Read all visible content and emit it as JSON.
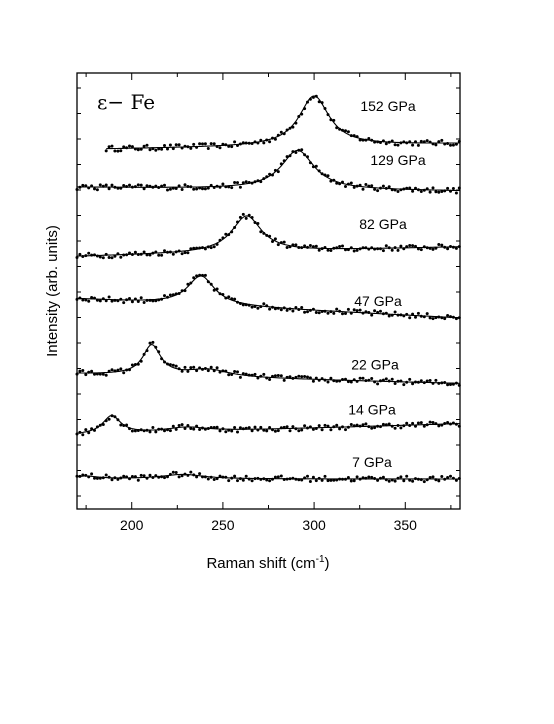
{
  "chart_data": {
    "type": "line",
    "title": "",
    "panel_label": "ε− Fe",
    "xlabel": "Raman shift (cm",
    "xlabel_superscript": "-1",
    "xlabel_close": ")",
    "ylabel": "Intensity (arb. units)",
    "xlim": [
      170,
      380
    ],
    "x_ticks": [
      200,
      250,
      300,
      350
    ],
    "y_ticks_shown": false,
    "grid": false,
    "marker_style": "dots with fitted line",
    "series": [
      {
        "name": "152 GPa",
        "x_start": 186,
        "x_end": 380,
        "baseline": 4.03,
        "slope": 0.0003,
        "peak_x": 300,
        "peak_height": 0.55,
        "width": 10,
        "peak2_x": 0,
        "peak2_height": 0
      },
      {
        "name": "129 GPa",
        "x_start": 170,
        "x_end": 380,
        "baseline": 3.6,
        "slope": -0.0002,
        "peak_x": 291,
        "peak_height": 0.43,
        "width": 11,
        "peak2_x": 0,
        "peak2_height": 0
      },
      {
        "name": "82 GPa",
        "x_start": 170,
        "x_end": 380,
        "baseline": 2.86,
        "slope": 0.0005,
        "peak_x": 263,
        "peak_height": 0.4,
        "width": 10,
        "peak2_x": 0,
        "peak2_height": 0
      },
      {
        "name": "47 GPa",
        "x_start": 170,
        "x_end": 380,
        "baseline": 2.35,
        "slope": -0.001,
        "peak_x": 238,
        "peak_height": 0.32,
        "width": 9,
        "peak2_x": 0,
        "peak2_height": 0
      },
      {
        "name": "22 GPa",
        "x_start": 170,
        "x_end": 380,
        "baseline": 1.54,
        "slope": -0.0005,
        "peak_x": 211,
        "peak_height": 0.33,
        "width": 6,
        "peak2_x": 242,
        "peak2_height": 0.08
      },
      {
        "name": "14 GPa",
        "x_start": 170,
        "x_end": 380,
        "baseline": 0.9,
        "slope": 0.0006,
        "peak_x": 189,
        "peak_height": 0.2,
        "width": 6,
        "peak2_x": 230,
        "peak2_height": 0.05
      },
      {
        "name": "7 GPa",
        "x_start": 170,
        "x_end": 380,
        "baseline": 0.4,
        "slope": 0.0,
        "peak_x": 175,
        "peak_height": 0.03,
        "width": 8,
        "peak2_x": 228,
        "peak2_height": 0.05
      }
    ]
  }
}
